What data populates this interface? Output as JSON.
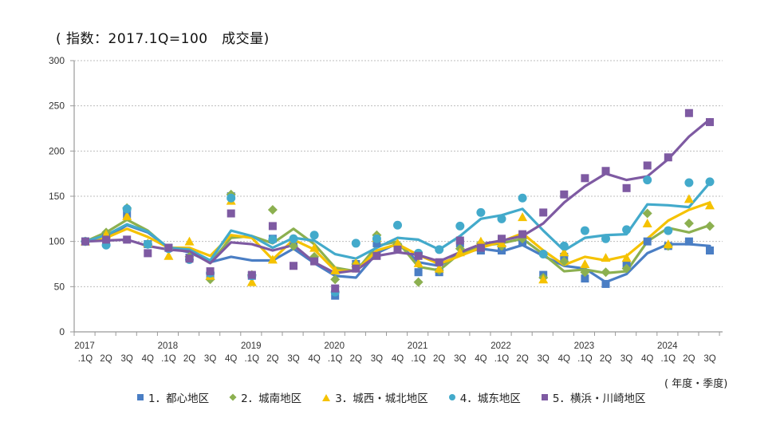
{
  "title": "( 指数：2017.1Q=100　成交量)",
  "x_unit_label": "( 年度・季度)",
  "chart_data": {
    "type": "line",
    "title": "( 指数：2017.1Q=100　成交量)",
    "xlabel": "( 年度・季度)",
    "ylabel": "",
    "ylim": [
      0,
      300
    ],
    "yticks": [
      0,
      50,
      100,
      150,
      200,
      250,
      300
    ],
    "grid": true,
    "legend_position": "bottom",
    "year_labels": [
      "2017",
      "2018",
      "2019",
      "2020",
      "2021",
      "2022",
      "2023",
      "2024"
    ],
    "categories": [
      ".1Q",
      "2Q",
      "3Q",
      "4Q",
      ".1Q",
      "2Q",
      "3Q",
      "4Q",
      ".1Q",
      "2Q",
      "3Q",
      "4Q",
      ".1Q",
      "2Q",
      "3Q",
      "4Q",
      ".1Q",
      "2Q",
      "3Q",
      "4Q",
      ".1Q",
      "2Q",
      "3Q",
      "4Q",
      ".1Q",
      "2Q",
      "3Q",
      "4Q",
      ".1Q",
      "2Q",
      "3Q"
    ],
    "series": [
      {
        "name": "1．都心地区",
        "color": "#4a7ec4",
        "marker": "square",
        "points": [
          100,
          105,
          130,
          97,
          93,
          82,
          62,
          150,
          62,
          103,
          100,
          79,
          40,
          75,
          98,
          94,
          66,
          66,
          98,
          90,
          90,
          100,
          63,
          83,
          59,
          53,
          74,
          100,
          95,
          100,
          90
        ],
        "trend": [
          100,
          104,
          118,
          110,
          93,
          88,
          77,
          83,
          79,
          79,
          92,
          76,
          62,
          60,
          87,
          98,
          77,
          73,
          86,
          92,
          89,
          96,
          84,
          73,
          70,
          55,
          64,
          87,
          97,
          97,
          95
        ]
      },
      {
        "name": "2．城南地区",
        "color": "#8cb050",
        "marker": "diamond",
        "points": [
          100,
          110,
          137,
          97,
          92,
          83,
          58,
          152,
          63,
          135,
          95,
          83,
          58,
          75,
          107,
          97,
          55,
          68,
          92,
          98,
          95,
          103,
          60,
          78,
          66,
          66,
          70,
          131,
          95,
          120,
          117
        ],
        "trend": [
          100,
          110,
          124,
          112,
          92,
          90,
          76,
          104,
          106,
          98,
          114,
          97,
          71,
          67,
          95,
          100,
          72,
          68,
          87,
          95,
          98,
          103,
          86,
          67,
          69,
          65,
          67,
          100,
          115,
          110,
          118
        ]
      },
      {
        "name": "3．城西・城北地区",
        "color": "#f5c200",
        "marker": "triangle",
        "points": [
          100,
          108,
          128,
          98,
          84,
          100,
          62,
          145,
          55,
          80,
          103,
          93,
          68,
          76,
          104,
          98,
          76,
          70,
          88,
          100,
          98,
          127,
          58,
          88,
          75,
          82,
          82,
          120,
          97,
          147,
          140
        ],
        "trend": [
          100,
          104,
          114,
          105,
          93,
          93,
          84,
          107,
          104,
          80,
          102,
          91,
          68,
          67,
          90,
          97,
          85,
          75,
          84,
          93,
          100,
          109,
          90,
          74,
          83,
          79,
          84,
          103,
          123,
          135,
          143
        ]
      },
      {
        "name": "4．城东地区",
        "color": "#43aacb",
        "marker": "circle",
        "points": [
          100,
          96,
          136,
          97,
          92,
          80,
          65,
          148,
          62,
          102,
          103,
          107,
          44,
          98,
          103,
          118,
          87,
          91,
          117,
          132,
          125,
          148,
          86,
          95,
          112,
          103,
          113,
          168,
          112,
          165,
          166
        ],
        "trend": [
          100,
          107,
          119,
          111,
          93,
          91,
          79,
          112,
          106,
          93,
          104,
          101,
          86,
          81,
          93,
          104,
          102,
          91,
          106,
          125,
          129,
          136,
          112,
          90,
          104,
          107,
          108,
          141,
          140,
          138,
          165
        ]
      },
      {
        "name": "5．横浜・川崎地区",
        "color": "#7e5aa2",
        "marker": "square",
        "points": [
          100,
          102,
          102,
          87,
          93,
          81,
          67,
          131,
          63,
          117,
          73,
          78,
          48,
          70,
          84,
          91,
          84,
          77,
          101,
          93,
          103,
          108,
          132,
          152,
          170,
          178,
          159,
          184,
          193,
          242,
          232
        ],
        "trend": [
          100,
          101,
          102,
          95,
          91,
          89,
          76,
          99,
          97,
          90,
          96,
          77,
          65,
          68,
          84,
          88,
          85,
          78,
          88,
          97,
          101,
          106,
          120,
          143,
          161,
          175,
          168,
          172,
          191,
          216,
          235
        ]
      }
    ]
  }
}
